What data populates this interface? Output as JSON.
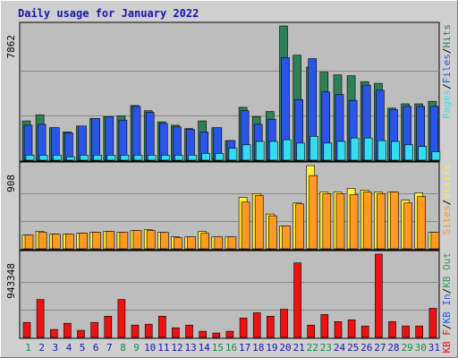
{
  "chart_data": {
    "type": "bar",
    "title": "Daily usage for January 2022",
    "categories": [
      "1",
      "2",
      "3",
      "4",
      "5",
      "6",
      "7",
      "8",
      "9",
      "10",
      "11",
      "12",
      "13",
      "14",
      "15",
      "16",
      "17",
      "18",
      "19",
      "20",
      "21",
      "22",
      "23",
      "24",
      "25",
      "26",
      "27",
      "28",
      "29",
      "30",
      "31"
    ],
    "weekend_days": [
      1,
      8,
      9,
      15,
      16,
      22,
      23,
      29,
      30
    ],
    "panels": [
      {
        "id": "hits-files-pages",
        "max_label": "7862",
        "ylim": [
          0,
          7862
        ],
        "legend": [
          "Pages",
          "/",
          "Files",
          "/",
          "Hits"
        ],
        "series": [
          {
            "name": "Hits",
            "color": "#2f7f55",
            "values": [
              2300,
              2650,
              1900,
              1650,
              2000,
              2450,
              2550,
              2600,
              3200,
              2900,
              2250,
              2050,
              1850,
              2300,
              1900,
              1150,
              3100,
              2550,
              2850,
              7862,
              6150,
              5450,
              5150,
              5000,
              4950,
              4600,
              4500,
              3050,
              3300,
              3300,
              3450
            ]
          },
          {
            "name": "Files",
            "color": "#2a55e8",
            "values": [
              2050,
              2100,
              1900,
              1600,
              2000,
              2450,
              2550,
              2350,
              3150,
              2800,
              2150,
              1950,
              1800,
              1650,
              1900,
              1150,
              2900,
              2100,
              2400,
              6000,
              3550,
              5950,
              4000,
              3850,
              3500,
              4400,
              4100,
              2950,
              3150,
              3150,
              3150
            ]
          },
          {
            "name": "Pages",
            "color": "#33ddee",
            "values": [
              300,
              300,
              300,
              200,
              300,
              300,
              300,
              300,
              300,
              300,
              300,
              300,
              300,
              400,
              400,
              700,
              900,
              1100,
              1100,
              1200,
              1000,
              1400,
              1000,
              1100,
              1300,
              1300,
              1150,
              1100,
              900,
              800,
              500
            ]
          }
        ]
      },
      {
        "id": "visits-sites",
        "max_label": "908",
        "ylim": [
          0,
          908
        ],
        "legend": [
          "Sites",
          "/",
          "Visits"
        ],
        "series": [
          {
            "name": "Visits",
            "color": "#ffee33",
            "values": [
              150,
              190,
              160,
              160,
              170,
              180,
              190,
              180,
              200,
              210,
              180,
              130,
              130,
              190,
              130,
              130,
              560,
              600,
              380,
              250,
              500,
              908,
              620,
              620,
              660,
              640,
              620,
              620,
              530,
              610,
              180
            ]
          },
          {
            "name": "Sites",
            "color": "#ff9922",
            "values": [
              150,
              180,
              160,
              160,
              170,
              180,
              190,
              180,
              200,
              200,
              180,
              120,
              130,
              170,
              130,
              130,
              510,
              580,
              360,
              250,
              490,
              800,
              600,
              600,
              590,
              620,
              600,
              620,
              500,
              570,
              180
            ]
          }
        ]
      },
      {
        "id": "kbytes",
        "max_label": "943348",
        "ylim": [
          0,
          943348
        ],
        "legend": [
          "KB F",
          "/",
          "KB In",
          "/",
          "KB Out"
        ],
        "series": [
          {
            "name": "KB F",
            "color": "#ee1111",
            "values": [
              170000,
              430000,
              90000,
              160000,
              80000,
              170000,
              240000,
              430000,
              140000,
              150000,
              240000,
              110000,
              140000,
              70000,
              50000,
              70000,
              220000,
              280000,
              240000,
              320000,
              845000,
              140000,
              260000,
              180000,
              200000,
              130000,
              943348,
              180000,
              130000,
              130000,
              330000
            ]
          }
        ]
      }
    ],
    "legend_colors": {
      "Pages": "#33ddee",
      "Files": "#2a55e8",
      "Hits": "#2f7f55",
      "Sites": "#ff9922",
      "Visits": "#ffee33",
      "KB F": "#ee1111",
      "KB In": "#2a55e8",
      "KB Out": "#2f9f55",
      "separator": "#000000"
    },
    "colors": {
      "page_bg": "#cfcfcf",
      "plot_bg": "#bdbdbd",
      "grid": "#888888",
      "title": "#1515b0",
      "weekday_label": "#1515b0",
      "weekend_label": "#15884a"
    }
  }
}
